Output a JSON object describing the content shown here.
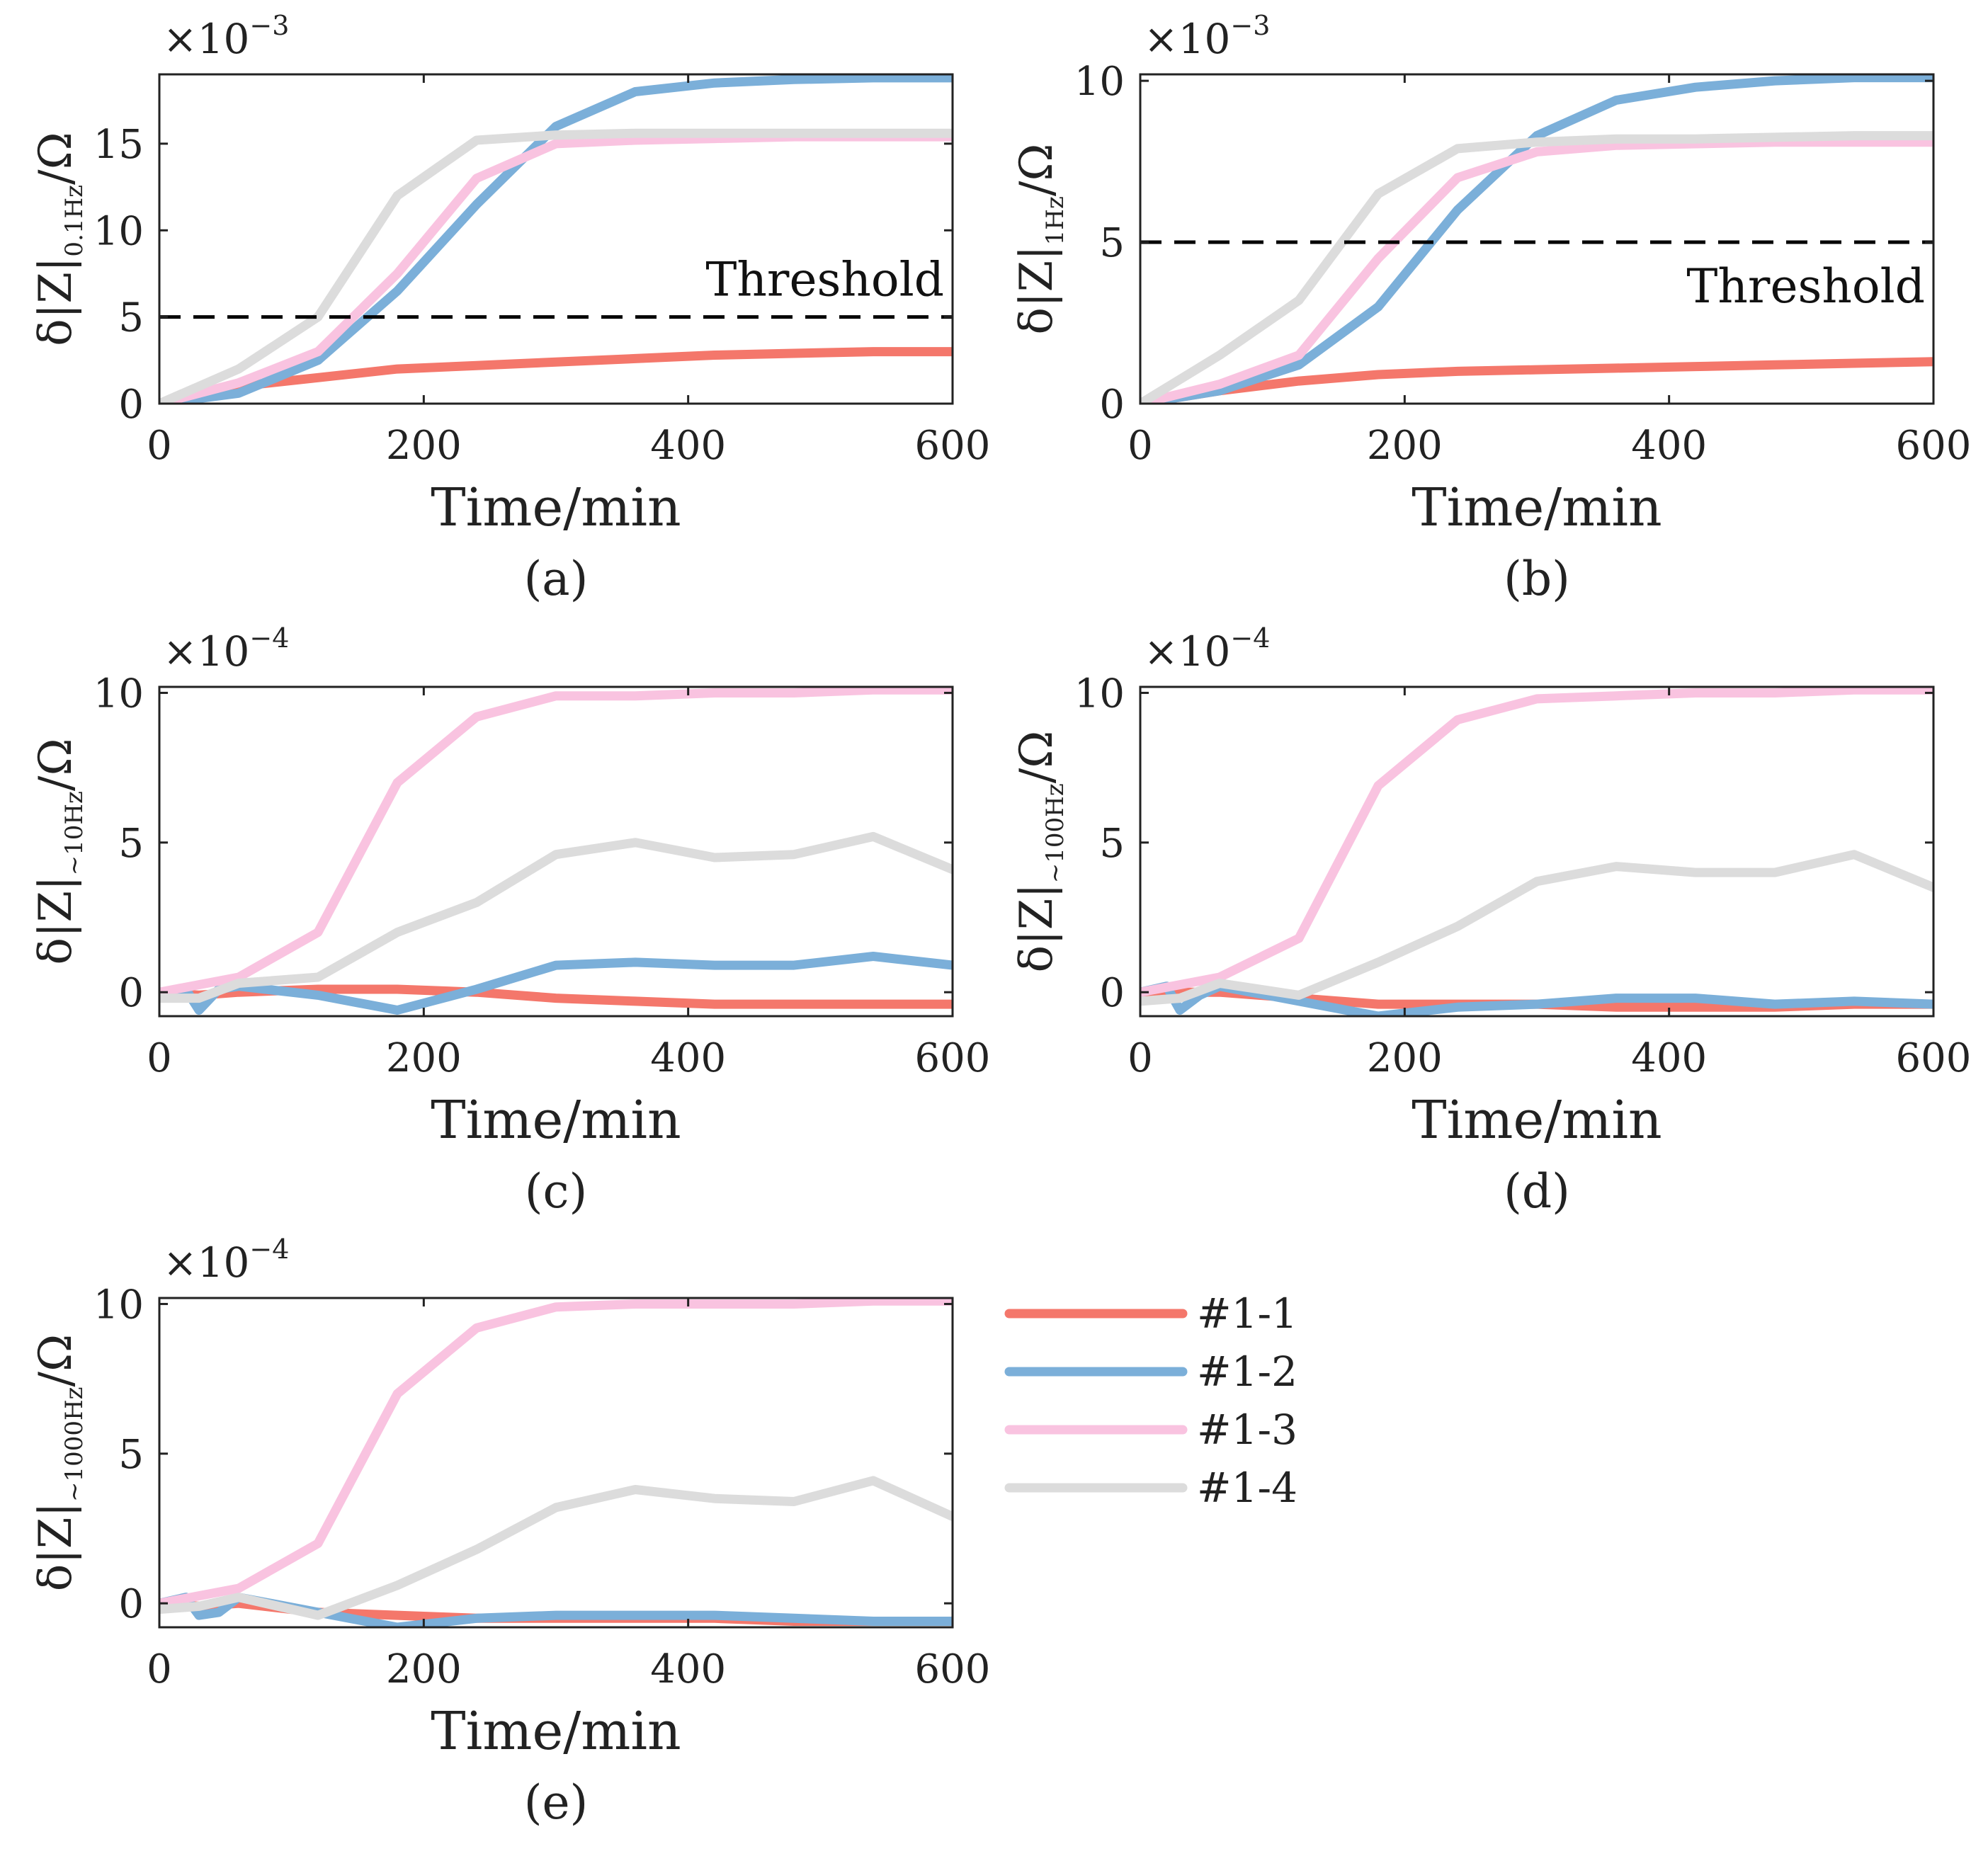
{
  "chart_data": [
    {
      "type": "line",
      "id": "a",
      "panel_label": "(a)",
      "xlabel": "Time/min",
      "ylabel": {
        "pre": "δ|Z|",
        "sub": "0.1Hz",
        "post": "/Ω"
      },
      "exponent": {
        "base": "×10",
        "power": "−3"
      },
      "xlim": [
        0,
        600
      ],
      "ylim": [
        0,
        19
      ],
      "xticks": [
        0,
        200,
        400,
        600
      ],
      "yticks": [
        0,
        5,
        10,
        15
      ],
      "threshold": {
        "value": 5,
        "label": "Threshold",
        "label_anchor": "above-right"
      },
      "series": [
        {
          "name": "#1-1",
          "x": [
            0,
            60,
            120,
            180,
            240,
            300,
            360,
            420,
            480,
            540,
            600
          ],
          "y": [
            0,
            1.0,
            1.5,
            2.0,
            2.2,
            2.4,
            2.6,
            2.8,
            2.9,
            3.0,
            3.0
          ]
        },
        {
          "name": "#1-2",
          "x": [
            0,
            60,
            120,
            180,
            240,
            300,
            360,
            420,
            480,
            540,
            600
          ],
          "y": [
            0,
            0.6,
            2.5,
            6.5,
            11.5,
            16.0,
            18.0,
            18.5,
            18.7,
            18.8,
            18.8
          ]
        },
        {
          "name": "#1-3",
          "x": [
            0,
            60,
            120,
            180,
            240,
            300,
            360,
            420,
            480,
            540,
            600
          ],
          "y": [
            0,
            1.2,
            3.0,
            7.5,
            13.0,
            15.0,
            15.2,
            15.3,
            15.4,
            15.4,
            15.4
          ]
        },
        {
          "name": "#1-4",
          "x": [
            0,
            60,
            120,
            180,
            240,
            300,
            360,
            420,
            480,
            540,
            600
          ],
          "y": [
            0,
            2.0,
            5.0,
            12.0,
            15.2,
            15.5,
            15.6,
            15.6,
            15.6,
            15.6,
            15.6
          ]
        }
      ]
    },
    {
      "type": "line",
      "id": "b",
      "panel_label": "(b)",
      "xlabel": "Time/min",
      "ylabel": {
        "pre": "δ|Z|",
        "sub": "1Hz",
        "post": "/Ω"
      },
      "exponent": {
        "base": "×10",
        "power": "−3"
      },
      "xlim": [
        0,
        600
      ],
      "ylim": [
        0,
        10.2
      ],
      "xticks": [
        0,
        200,
        400,
        600
      ],
      "yticks": [
        0,
        5,
        10
      ],
      "threshold": {
        "value": 5,
        "label": "Threshold",
        "label_anchor": "below-right"
      },
      "series": [
        {
          "name": "#1-1",
          "x": [
            0,
            60,
            120,
            180,
            240,
            300,
            360,
            420,
            480,
            540,
            600
          ],
          "y": [
            0,
            0.4,
            0.7,
            0.9,
            1.0,
            1.05,
            1.1,
            1.15,
            1.2,
            1.25,
            1.3
          ]
        },
        {
          "name": "#1-2",
          "x": [
            0,
            60,
            120,
            180,
            240,
            300,
            360,
            420,
            480,
            540,
            600
          ],
          "y": [
            0,
            0.4,
            1.2,
            3.0,
            6.0,
            8.3,
            9.4,
            9.8,
            10.0,
            10.1,
            10.1
          ]
        },
        {
          "name": "#1-3",
          "x": [
            0,
            60,
            120,
            180,
            240,
            300,
            360,
            420,
            480,
            540,
            600
          ],
          "y": [
            0,
            0.6,
            1.5,
            4.5,
            7.0,
            7.8,
            8.0,
            8.05,
            8.1,
            8.1,
            8.1
          ]
        },
        {
          "name": "#1-4",
          "x": [
            0,
            60,
            120,
            180,
            240,
            300,
            360,
            420,
            480,
            540,
            600
          ],
          "y": [
            0,
            1.5,
            3.2,
            6.5,
            7.9,
            8.1,
            8.2,
            8.2,
            8.25,
            8.3,
            8.3
          ]
        }
      ]
    },
    {
      "type": "line",
      "id": "c",
      "panel_label": "(c)",
      "xlabel": "Time/min",
      "ylabel": {
        "pre": "δ|Z|",
        "sub": "~10Hz",
        "post": "/Ω"
      },
      "exponent": {
        "base": "×10",
        "power": "−4"
      },
      "xlim": [
        0,
        600
      ],
      "ylim": [
        -0.8,
        10.2
      ],
      "xticks": [
        0,
        200,
        400,
        600
      ],
      "yticks": [
        0,
        5,
        10
      ],
      "series": [
        {
          "name": "#1-1",
          "x": [
            0,
            30,
            60,
            120,
            180,
            240,
            300,
            360,
            420,
            480,
            540,
            600
          ],
          "y": [
            0,
            -0.1,
            0,
            0.1,
            0.1,
            0,
            -0.2,
            -0.3,
            -0.4,
            -0.4,
            -0.4,
            -0.4
          ]
        },
        {
          "name": "#1-2",
          "x": [
            0,
            20,
            30,
            45,
            60,
            120,
            180,
            240,
            300,
            360,
            420,
            480,
            540,
            600
          ],
          "y": [
            0,
            0.1,
            -0.6,
            0.1,
            0.2,
            -0.1,
            -0.6,
            0.1,
            0.9,
            1.0,
            0.9,
            0.9,
            1.2,
            0.9
          ]
        },
        {
          "name": "#1-3",
          "x": [
            0,
            60,
            120,
            180,
            240,
            300,
            360,
            420,
            480,
            540,
            600
          ],
          "y": [
            0,
            0.5,
            2.0,
            7.0,
            9.2,
            9.9,
            9.9,
            10.0,
            10.0,
            10.1,
            10.1
          ]
        },
        {
          "name": "#1-4",
          "x": [
            0,
            30,
            60,
            120,
            180,
            240,
            300,
            360,
            420,
            480,
            540,
            600
          ],
          "y": [
            -0.2,
            -0.2,
            0.3,
            0.5,
            2.0,
            3.0,
            4.6,
            5.0,
            4.5,
            4.6,
            5.2,
            4.1
          ]
        }
      ]
    },
    {
      "type": "line",
      "id": "d",
      "panel_label": "(d)",
      "xlabel": "Time/min",
      "ylabel": {
        "pre": "δ|Z|",
        "sub": "~100Hz",
        "post": "/Ω"
      },
      "exponent": {
        "base": "×10",
        "power": "−4"
      },
      "xlim": [
        0,
        600
      ],
      "ylim": [
        -0.8,
        10.2
      ],
      "xticks": [
        0,
        200,
        400,
        600
      ],
      "yticks": [
        0,
        5,
        10
      ],
      "series": [
        {
          "name": "#1-1",
          "x": [
            0,
            30,
            60,
            120,
            180,
            240,
            300,
            360,
            420,
            480,
            540,
            600
          ],
          "y": [
            0,
            0,
            0,
            -0.2,
            -0.4,
            -0.4,
            -0.4,
            -0.5,
            -0.5,
            -0.5,
            -0.4,
            -0.4
          ]
        },
        {
          "name": "#1-2",
          "x": [
            0,
            20,
            30,
            45,
            60,
            120,
            180,
            240,
            300,
            360,
            420,
            480,
            540,
            600
          ],
          "y": [
            0,
            0.2,
            -0.6,
            -0.1,
            0.2,
            -0.3,
            -0.8,
            -0.5,
            -0.4,
            -0.2,
            -0.2,
            -0.4,
            -0.3,
            -0.4
          ]
        },
        {
          "name": "#1-3",
          "x": [
            0,
            60,
            120,
            180,
            240,
            300,
            360,
            420,
            480,
            540,
            600
          ],
          "y": [
            0,
            0.5,
            1.8,
            6.9,
            9.1,
            9.8,
            9.9,
            10.0,
            10.0,
            10.1,
            10.1
          ]
        },
        {
          "name": "#1-4",
          "x": [
            0,
            30,
            60,
            120,
            180,
            240,
            300,
            360,
            420,
            480,
            540,
            600
          ],
          "y": [
            -0.3,
            -0.2,
            0.3,
            -0.1,
            1.0,
            2.2,
            3.7,
            4.2,
            4.0,
            4.0,
            4.6,
            3.5
          ]
        }
      ]
    },
    {
      "type": "line",
      "id": "e",
      "panel_label": "(e)",
      "xlabel": "Time/min",
      "ylabel": {
        "pre": "δ|Z|",
        "sub": "~1000Hz",
        "post": "/Ω"
      },
      "exponent": {
        "base": "×10",
        "power": "−4"
      },
      "xlim": [
        0,
        600
      ],
      "ylim": [
        -0.8,
        10.2
      ],
      "xticks": [
        0,
        200,
        400,
        600
      ],
      "yticks": [
        0,
        5,
        10
      ],
      "series": [
        {
          "name": "#1-1",
          "x": [
            0,
            30,
            60,
            120,
            180,
            240,
            300,
            360,
            420,
            480,
            540,
            600
          ],
          "y": [
            0,
            -0.1,
            0,
            -0.3,
            -0.4,
            -0.5,
            -0.5,
            -0.5,
            -0.5,
            -0.6,
            -0.6,
            -0.6
          ]
        },
        {
          "name": "#1-2",
          "x": [
            0,
            20,
            30,
            45,
            60,
            120,
            180,
            240,
            300,
            360,
            420,
            480,
            540,
            600
          ],
          "y": [
            0,
            0.2,
            -0.4,
            -0.3,
            0.2,
            -0.3,
            -0.8,
            -0.5,
            -0.4,
            -0.4,
            -0.4,
            -0.5,
            -0.6,
            -0.6
          ]
        },
        {
          "name": "#1-3",
          "x": [
            0,
            60,
            120,
            180,
            240,
            300,
            360,
            420,
            480,
            540,
            600
          ],
          "y": [
            0,
            0.5,
            2.0,
            7.0,
            9.2,
            9.9,
            10.0,
            10.0,
            10.0,
            10.1,
            10.1
          ]
        },
        {
          "name": "#1-4",
          "x": [
            0,
            30,
            60,
            120,
            180,
            240,
            300,
            360,
            420,
            480,
            540,
            600
          ],
          "y": [
            -0.2,
            -0.1,
            0.2,
            -0.4,
            0.6,
            1.8,
            3.2,
            3.8,
            3.5,
            3.4,
            4.1,
            2.9
          ]
        }
      ]
    }
  ],
  "legend": {
    "placement": "right of panel (e)",
    "entries": [
      {
        "label": "#1-1",
        "color": "#F4776B"
      },
      {
        "label": "#1-2",
        "color": "#7BAFD9"
      },
      {
        "label": "#1-3",
        "color": "#F9C3E0"
      },
      {
        "label": "#1-4",
        "color": "#DCDCDC"
      }
    ]
  },
  "colors": {
    "series": [
      "#F4776B",
      "#7BAFD9",
      "#F9C3E0",
      "#DCDCDC"
    ],
    "axis": "#222222",
    "threshold": "#000000"
  }
}
